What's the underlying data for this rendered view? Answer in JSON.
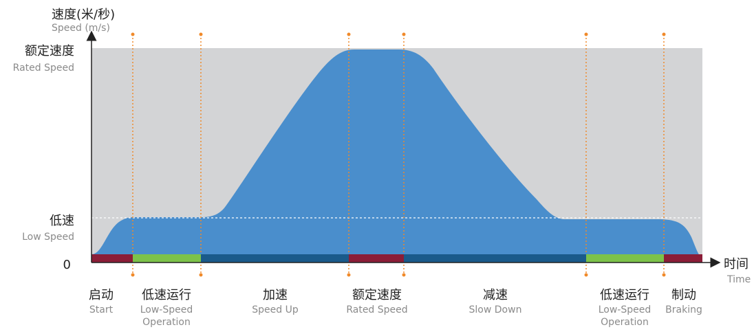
{
  "y_axis": {
    "label_zh": "速度(米/秒)",
    "label_en": "Speed (m/s)"
  },
  "x_axis": {
    "label_zh": "时间",
    "label_en": "Time"
  },
  "levels": {
    "rated": {
      "label_zh": "额定速度",
      "label_en": "Rated Speed"
    },
    "low": {
      "label_zh": "低速",
      "label_en": "Low Speed"
    },
    "zero": "0"
  },
  "phases": [
    {
      "zh": "启动",
      "en": [
        "Start"
      ],
      "bar_color": "#8b1d37"
    },
    {
      "zh": "低速运行",
      "en": [
        "Low-Speed",
        "Operation"
      ],
      "bar_color": "#7cc24a"
    },
    {
      "zh": "加速",
      "en": [
        "Speed Up"
      ],
      "bar_color": "#1a5a8a"
    },
    {
      "zh": "额定速度",
      "en": [
        "Rated Speed"
      ],
      "bar_color": "#8b1d37"
    },
    {
      "zh": "减速",
      "en": [
        "Slow Down"
      ],
      "bar_color": "#1a5a8a"
    },
    {
      "zh": "低速运行",
      "en": [
        "Low-Speed",
        "Operation"
      ],
      "bar_color": "#7cc24a"
    },
    {
      "zh": "制动",
      "en": [
        "Braking"
      ],
      "bar_color": "#8b1d37"
    }
  ],
  "colors": {
    "background_band": "#d3d4d6",
    "speed_fill": "#4a8ecc",
    "marker": "#f08a2a",
    "axis": "#222222",
    "low_speed_dash": "#ffffff"
  }
}
